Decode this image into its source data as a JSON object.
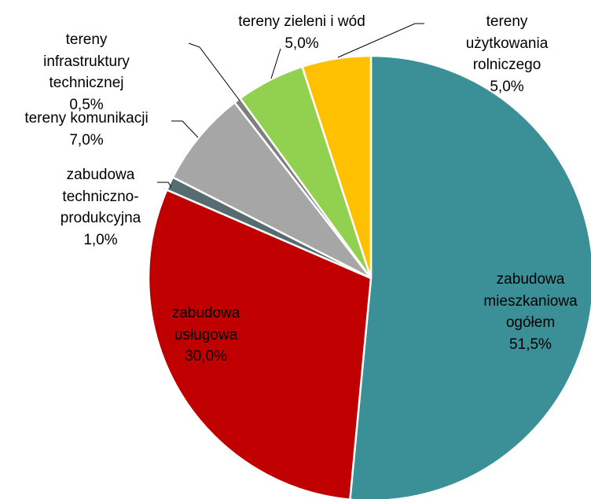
{
  "chart_data": {
    "type": "pie",
    "categories": [
      "zabudowa\nmieszkaniowa\nogółem",
      "zabudowa\nusługowa",
      "zabudowa\ntechniczno-\nprodukcyjna",
      "tereny komunikacji",
      "tereny\ninfrastruktury\ntechnicznej",
      "tereny zieleni i wód",
      "tereny użytkowania\nrolniczego"
    ],
    "values": [
      51.5,
      30.0,
      1.0,
      7.0,
      0.5,
      5.0,
      5.0
    ],
    "value_labels": [
      "51,5%",
      "30,0%",
      "1,0%",
      "7,0%",
      "0,5%",
      "5,0%",
      "5,0%"
    ],
    "colors": [
      "#3b8f97",
      "#c00000",
      "#566c70",
      "#a6a6a6",
      "#7f7f7f",
      "#92d050",
      "#ffc000"
    ]
  }
}
